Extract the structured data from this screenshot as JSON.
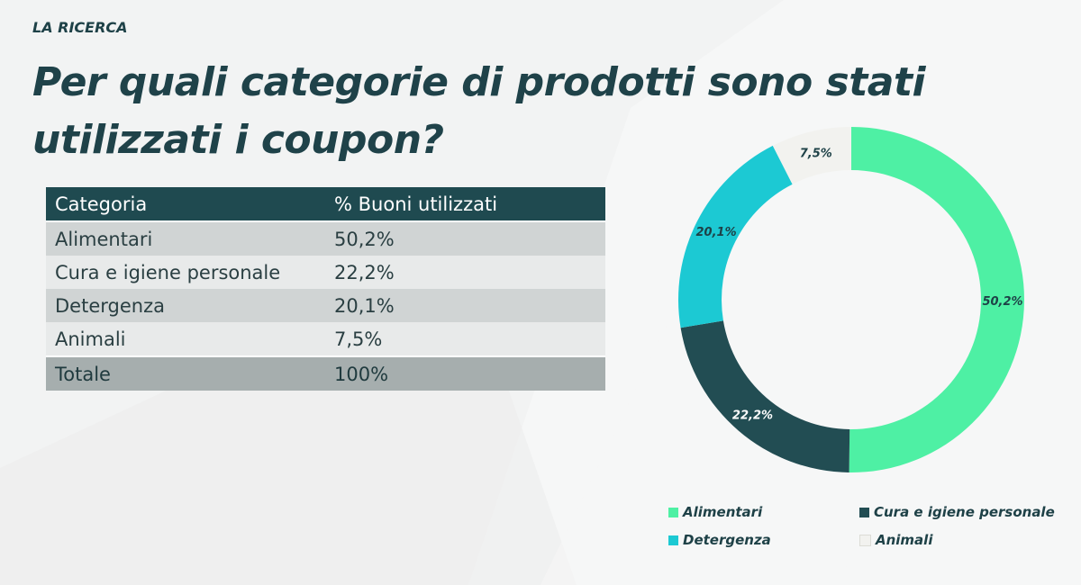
{
  "header": {
    "kicker": "LA RICERCA",
    "title": "Per quali categorie di prodotti sono stati utilizzati i coupon?"
  },
  "table": {
    "headers": [
      "Categoria",
      "% Buoni utilizzati"
    ],
    "rows": [
      {
        "category": "Alimentari",
        "value": "50,2%"
      },
      {
        "category": "Cura e igiene personale",
        "value": "22,2%"
      },
      {
        "category": "Detergenza",
        "value": "20,1%"
      },
      {
        "category": "Animali",
        "value": "7,5%"
      }
    ],
    "total": {
      "category": "Totale",
      "value": "100%"
    }
  },
  "chart_data": {
    "type": "pie",
    "donut": true,
    "categories": [
      "Alimentari",
      "Cura e igiene personale",
      "Detergenza",
      "Animali"
    ],
    "values": [
      50.2,
      22.2,
      20.1,
      7.5
    ],
    "labels": [
      "50,2%",
      "22,2%",
      "20,1%",
      "7,5%"
    ],
    "colors": [
      "#4ef0a4",
      "#224d53",
      "#1cc9d3",
      "#f2f2ef"
    ],
    "label_colors": [
      "#1e4147",
      "#ffffff",
      "#1e4147",
      "#1e4147"
    ],
    "legend_position": "bottom"
  },
  "legend": {
    "items": [
      "Alimentari",
      "Cura e igiene personale",
      "Detergenza",
      "Animali"
    ]
  },
  "colors": {
    "title": "#1f4249",
    "table_header_bg": "#1f4a50",
    "table_total_bg": "#a6aeae"
  }
}
